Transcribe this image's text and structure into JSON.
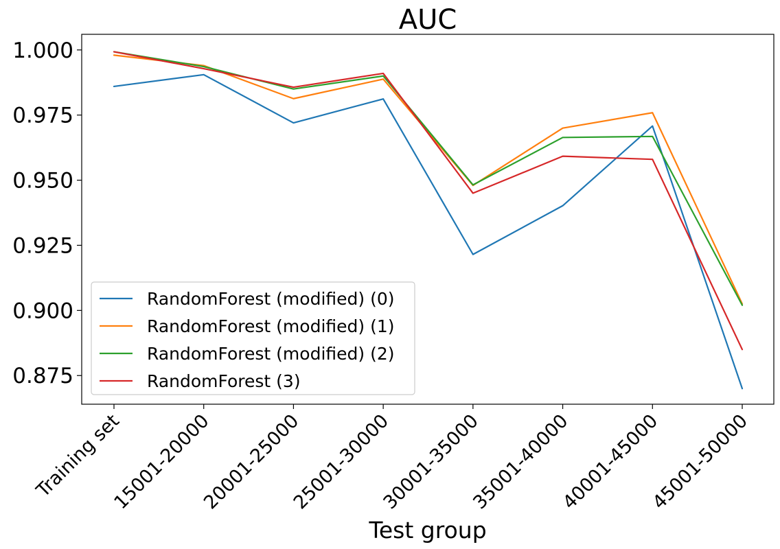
{
  "chart_data": {
    "type": "line",
    "title": "AUC",
    "xlabel": "Test group",
    "ylabel": "",
    "categories": [
      "Training set",
      "15001-20000",
      "20001-25000",
      "25001-30000",
      "30001-35000",
      "35001-40000",
      "40001-45000",
      "45001-50000"
    ],
    "ylim": [
      0.864,
      1.006
    ],
    "yticks": [
      0.875,
      0.9,
      0.925,
      0.95,
      0.975,
      1.0
    ],
    "ytick_labels": [
      "0.875",
      "0.900",
      "0.925",
      "0.950",
      "0.975",
      "1.000"
    ],
    "grid": false,
    "legend_position": "lower-left",
    "series": [
      {
        "name": "RandomForest (modified) (0)",
        "color": "#1f77b4",
        "values": [
          0.986,
          0.9905,
          0.972,
          0.9812,
          0.9215,
          0.9402,
          0.9708,
          0.87
        ]
      },
      {
        "name": "RandomForest (modified) (1)",
        "color": "#ff7f0e",
        "values": [
          0.998,
          0.994,
          0.9813,
          0.9888,
          0.948,
          0.97,
          0.9759,
          0.9025
        ]
      },
      {
        "name": "RandomForest (modified) (2)",
        "color": "#2ca02c",
        "values": [
          0.9993,
          0.9936,
          0.985,
          0.99,
          0.9482,
          0.9664,
          0.9668,
          0.902
        ]
      },
      {
        "name": "RandomForest (3)",
        "color": "#d62728",
        "values": [
          0.9993,
          0.9928,
          0.9857,
          0.991,
          0.945,
          0.9592,
          0.958,
          0.885
        ]
      }
    ]
  }
}
